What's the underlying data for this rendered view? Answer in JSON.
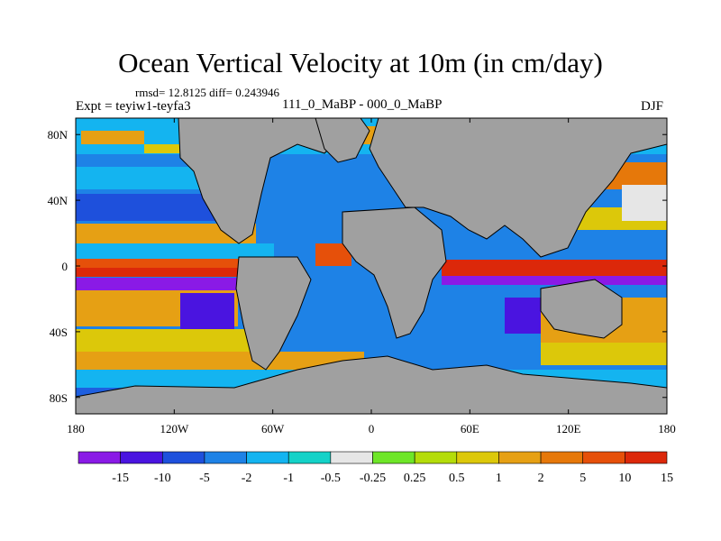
{
  "figure": {
    "title": "Ocean Vertical Velocity at 10m (in cm/day)",
    "stats": "rmsd= 12.8125 diff= 0.243946",
    "experiment": "Expt = teyiw1-teyfa3",
    "subtitle": "111_0_MaBP - 000_0_MaBP",
    "season": "DJF"
  },
  "map": {
    "projection": "cylindrical-equidistant",
    "lon_range": [
      -180,
      180
    ],
    "lat_range": [
      -90,
      90
    ],
    "land_color": "#a0a0a0",
    "coastline_color": "#000000",
    "x_ticks": [
      {
        "value": -180,
        "label": "180"
      },
      {
        "value": -120,
        "label": "120W"
      },
      {
        "value": -60,
        "label": "60W"
      },
      {
        "value": 0,
        "label": "0"
      },
      {
        "value": 60,
        "label": "60E"
      },
      {
        "value": 120,
        "label": "120E"
      },
      {
        "value": 180,
        "label": "180"
      }
    ],
    "y_ticks": [
      {
        "value": 80,
        "label": "80N"
      },
      {
        "value": 40,
        "label": "40N"
      },
      {
        "value": 0,
        "label": "0"
      },
      {
        "value": -40,
        "label": "40S"
      },
      {
        "value": -80,
        "label": "80S"
      }
    ]
  },
  "colorbar": {
    "colors": [
      "#8a1ae6",
      "#4a14e0",
      "#1e50dc",
      "#1e82e6",
      "#14b4f0",
      "#14d2c8",
      "#e6e6e6",
      "#6ee628",
      "#b4dc0a",
      "#dcc80a",
      "#e6a014",
      "#e6780a",
      "#e6500a",
      "#dc280a"
    ],
    "labels": [
      "-15",
      "-10",
      "-5",
      "-2",
      "-1",
      "-0.5",
      "-0.25",
      "0.25",
      "0.5",
      "1",
      "2",
      "5",
      "10",
      "15"
    ]
  }
}
